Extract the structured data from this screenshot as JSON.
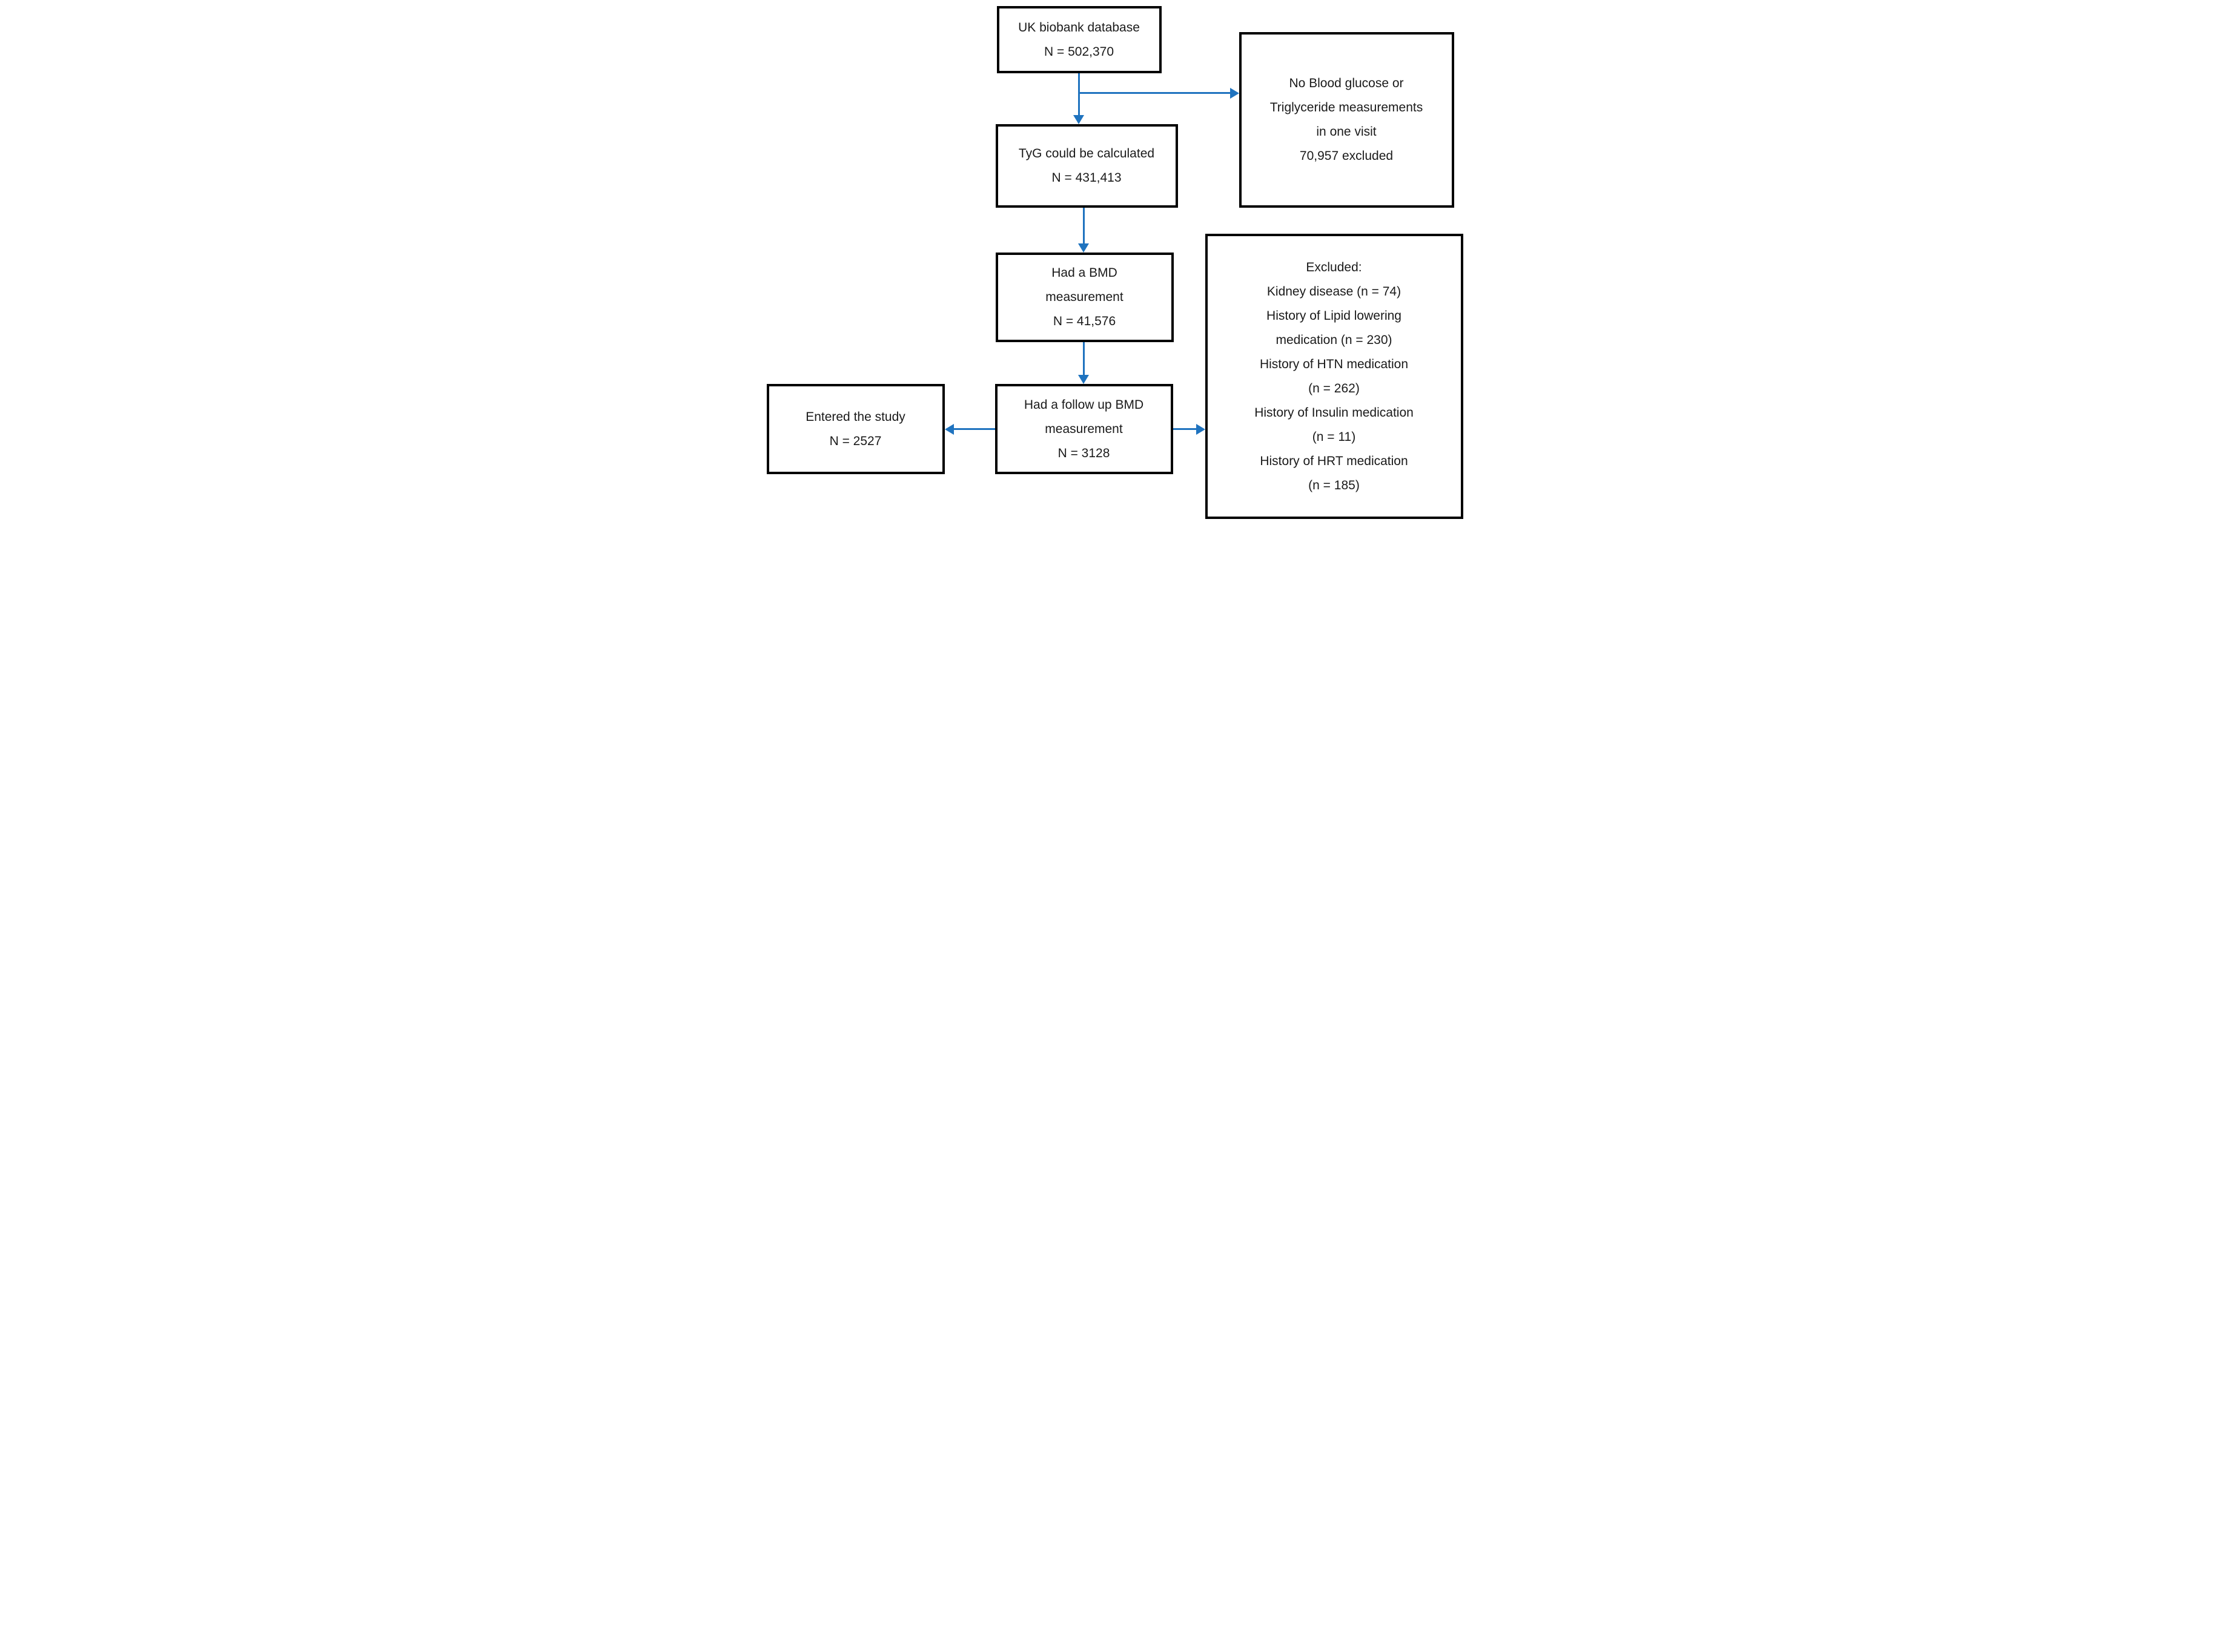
{
  "flowchart": {
    "background_color": "#ffffff",
    "box_border_color": "#000000",
    "arrow_color": "#1f73bf",
    "boxes": {
      "uk_biobank": {
        "lines": [
          "UK biobank database",
          "N = 502,370"
        ]
      },
      "tyg": {
        "lines": [
          "TyG could be calculated",
          "N = 431,413"
        ]
      },
      "bmd": {
        "lines": [
          "Had a BMD",
          "measurement",
          "N = 41,576"
        ]
      },
      "followup_bmd": {
        "lines": [
          "Had a follow up BMD",
          "measurement",
          "N = 3128"
        ]
      },
      "entered": {
        "lines": [
          "Entered the study",
          "N = 2527"
        ]
      },
      "no_glucose": {
        "lines": [
          "No Blood glucose or",
          "Triglyceride measurements",
          "in one visit",
          "70,957 excluded"
        ]
      },
      "excluded": {
        "lines": [
          "Excluded:",
          "Kidney disease (n = 74)",
          "History of Lipid lowering",
          "medication (n = 230)",
          "History of HTN medication",
          "(n = 262)",
          "History of Insulin medication",
          "(n = 11)",
          "History of HRT medication",
          "(n = 185)"
        ]
      }
    }
  }
}
